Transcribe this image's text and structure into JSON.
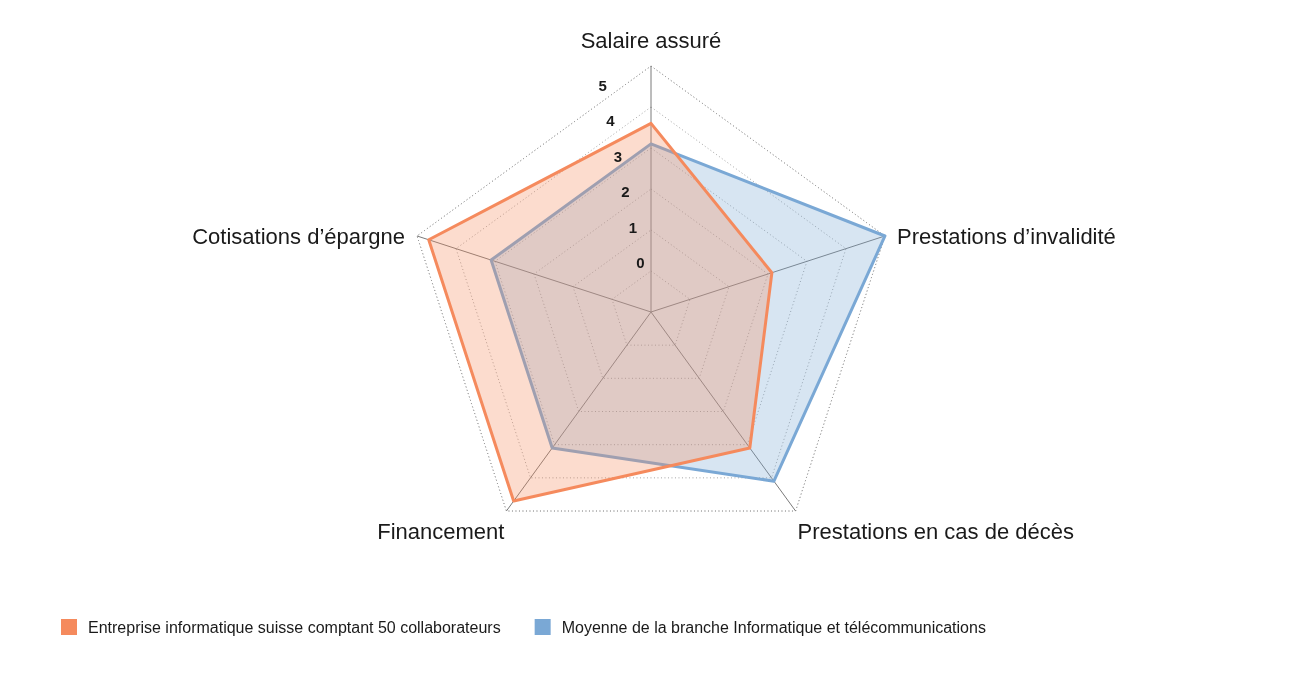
{
  "chart_data": {
    "type": "radar",
    "categories": [
      "Salaire assuré",
      "Prestations d’invalidité",
      "Prestations en cas de décès",
      "Financement",
      "Cotisations d’épargne"
    ],
    "series": [
      {
        "name": "Entreprise informatique suisse comptant 50 collaborateurs",
        "color": "#f58a5d",
        "values": [
          3.6,
          2.1,
          3.1,
          4.7,
          4.7
        ]
      },
      {
        "name": "Moyenne de la branche Informatique et télécommunications",
        "color": "#7aa8d5",
        "values": [
          3.1,
          5,
          4.1,
          3.1,
          3.1
        ]
      }
    ],
    "ylim": [
      -1,
      5
    ],
    "yticks": [
      0,
      1,
      2,
      3,
      4,
      5
    ],
    "grid": true,
    "legend": "bottom"
  }
}
